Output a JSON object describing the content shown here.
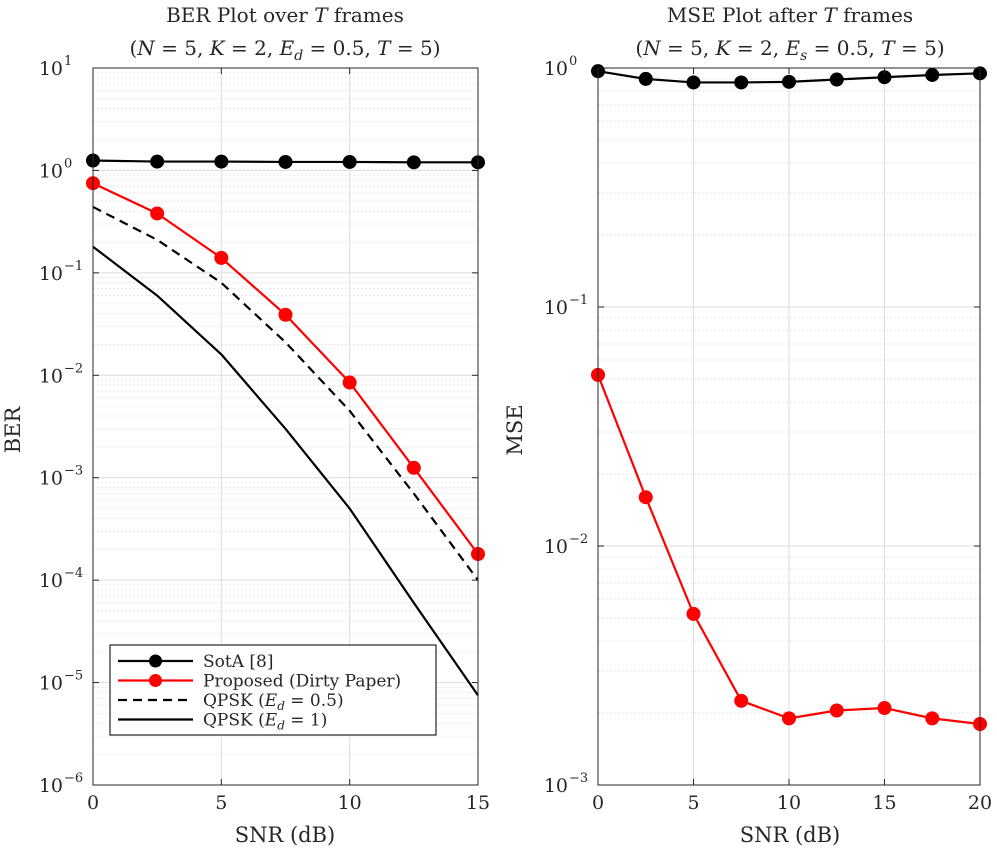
{
  "chart_data": [
    {
      "type": "line",
      "title": "BER Plot over T frames",
      "subtitle": "(N = 5, K = 2, E_d = 0.5, T = 5)",
      "xlabel": "SNR (dB)",
      "ylabel": "BER",
      "yscale": "log",
      "xlim": [
        0,
        15
      ],
      "ylim": [
        1e-06,
        10
      ],
      "xticks": [
        0,
        5,
        10,
        15
      ],
      "yticks": [
        {
          "mant": "10",
          "exp": "1",
          "value": 10
        },
        {
          "mant": "10",
          "exp": "0",
          "value": 1
        },
        {
          "mant": "10",
          "exp": "−1",
          "value": 0.1
        },
        {
          "mant": "10",
          "exp": "−2",
          "value": 0.01
        },
        {
          "mant": "10",
          "exp": "−3",
          "value": 0.001
        },
        {
          "mant": "10",
          "exp": "−4",
          "value": 0.0001
        },
        {
          "mant": "10",
          "exp": "−5",
          "value": 1e-05
        },
        {
          "mant": "10",
          "exp": "−6",
          "value": 1e-06
        }
      ],
      "grid": true,
      "legend_position": "bottom-left",
      "series": [
        {
          "name": "SotA [8]",
          "color": "#000000",
          "style": "solid-marker",
          "x": [
            0,
            2.5,
            5,
            7.5,
            10,
            12.5,
            15
          ],
          "y": [
            1.25,
            1.22,
            1.22,
            1.21,
            1.21,
            1.2,
            1.2
          ]
        },
        {
          "name": "Proposed (Dirty Paper)",
          "color": "#ff0000",
          "style": "solid-marker",
          "x": [
            0,
            2.5,
            5,
            7.5,
            10,
            12.5,
            15
          ],
          "y": [
            0.75,
            0.38,
            0.14,
            0.039,
            0.0085,
            0.00125,
            0.00018
          ]
        },
        {
          "name": "QPSK (E_d = 0.5)",
          "color": "#000000",
          "style": "dashed",
          "x": [
            0,
            2.5,
            5,
            7.5,
            10,
            12.5,
            15
          ],
          "y": [
            0.44,
            0.21,
            0.08,
            0.021,
            0.0045,
            0.0007,
            0.0001
          ]
        },
        {
          "name": "QPSK (E_d = 1)",
          "color": "#000000",
          "style": "solid",
          "x": [
            0,
            2.5,
            5,
            7.5,
            10,
            12.5,
            15
          ],
          "y": [
            0.18,
            0.06,
            0.016,
            0.003,
            0.0005,
            6e-05,
            7.5e-06
          ]
        }
      ]
    },
    {
      "type": "line",
      "title": "MSE Plot after T frames",
      "subtitle": "(N = 5, K = 2, E_s = 0.5, T = 5)",
      "xlabel": "SNR (dB)",
      "ylabel": "MSE",
      "yscale": "log",
      "xlim": [
        0,
        20
      ],
      "ylim": [
        0.001,
        1
      ],
      "xticks": [
        0,
        5,
        10,
        15,
        20
      ],
      "yticks": [
        {
          "mant": "10",
          "exp": "0",
          "value": 1
        },
        {
          "mant": "10",
          "exp": "−1",
          "value": 0.1
        },
        {
          "mant": "10",
          "exp": "−2",
          "value": 0.01
        },
        {
          "mant": "10",
          "exp": "−3",
          "value": 0.001
        }
      ],
      "grid": true,
      "series": [
        {
          "name": "SotA [8]",
          "color": "#000000",
          "style": "solid-marker",
          "x": [
            0,
            2.5,
            5,
            7.5,
            10,
            12.5,
            15,
            17.5,
            20
          ],
          "y": [
            0.97,
            0.9,
            0.87,
            0.87,
            0.875,
            0.895,
            0.915,
            0.935,
            0.95
          ]
        },
        {
          "name": "Proposed (Dirty Paper)",
          "color": "#ff0000",
          "style": "solid-marker",
          "x": [
            0,
            2.5,
            5,
            7.5,
            10,
            12.5,
            15,
            17.5,
            20
          ],
          "y": [
            0.052,
            0.016,
            0.0052,
            0.00225,
            0.0019,
            0.00205,
            0.0021,
            0.0019,
            0.0018
          ]
        }
      ]
    }
  ]
}
